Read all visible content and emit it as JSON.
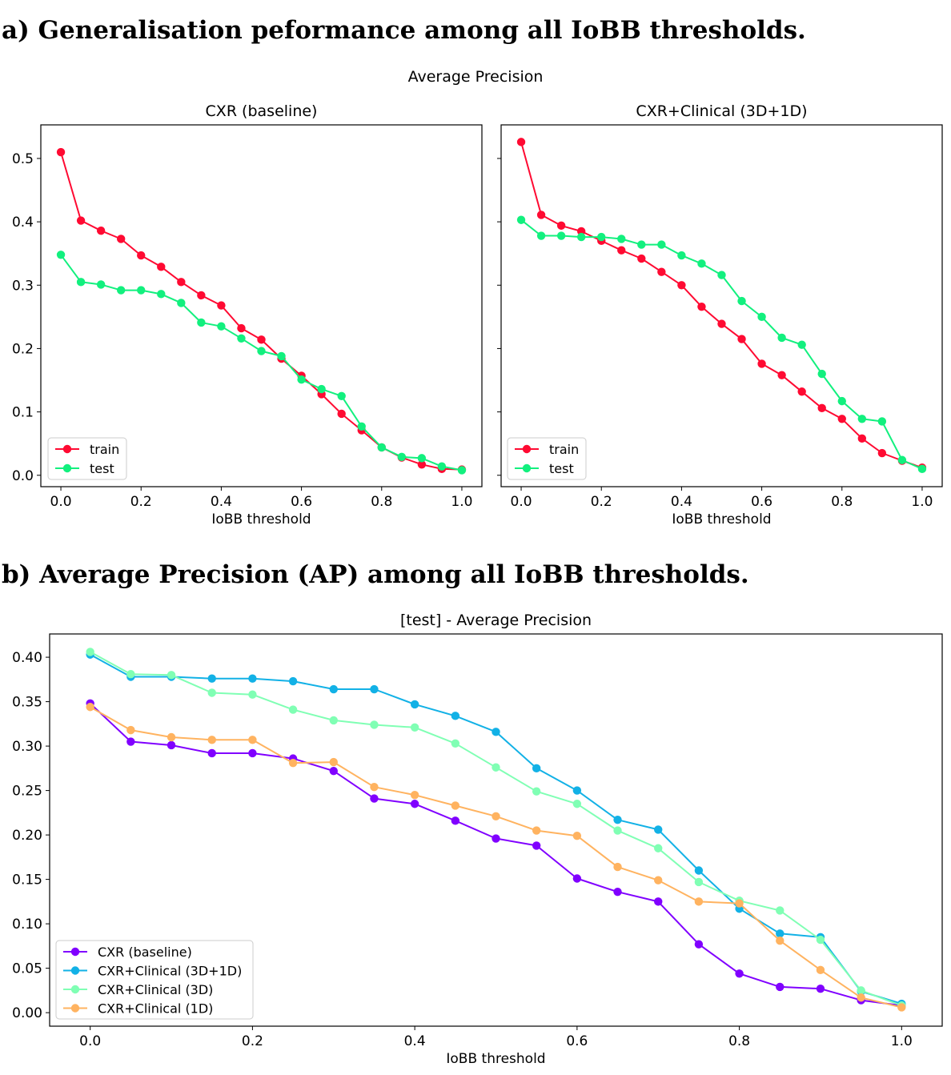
{
  "headings": {
    "a": "a) Generalisation peformance among all IoBB thresholds.",
    "b": "b) Average Precision (AP) among all IoBB thresholds."
  },
  "chart_data": [
    {
      "type": "line",
      "suptitle": "Average Precision",
      "title": "CXR (baseline)",
      "xlabel": "IoBB threshold",
      "ylabel": "",
      "xlim": [
        -0.05,
        1.05
      ],
      "ylim": [
        -0.018,
        0.553
      ],
      "xticks": [
        "0.0",
        "0.2",
        "0.4",
        "0.6",
        "0.8",
        "1.0"
      ],
      "yticks": [
        "0.0",
        "0.1",
        "0.2",
        "0.3",
        "0.4",
        "0.5"
      ],
      "legend": "lower-left",
      "grid": false,
      "x": [
        0.0,
        0.05,
        0.1,
        0.15,
        0.2,
        0.25,
        0.3,
        0.35,
        0.4,
        0.45,
        0.5,
        0.55,
        0.6,
        0.65,
        0.7,
        0.75,
        0.8,
        0.85,
        0.9,
        0.95,
        1.0
      ],
      "series": [
        {
          "name": "train",
          "color": "#ff0a32",
          "values": [
            0.51,
            0.402,
            0.386,
            0.373,
            0.347,
            0.329,
            0.305,
            0.284,
            0.268,
            0.232,
            0.214,
            0.184,
            0.157,
            0.128,
            0.097,
            0.071,
            0.044,
            0.028,
            0.017,
            0.01,
            0.009
          ]
        },
        {
          "name": "test",
          "color": "#12f07e",
          "values": [
            0.348,
            0.305,
            0.301,
            0.292,
            0.292,
            0.286,
            0.272,
            0.241,
            0.235,
            0.216,
            0.196,
            0.188,
            0.151,
            0.136,
            0.125,
            0.077,
            0.044,
            0.029,
            0.027,
            0.014,
            0.008
          ]
        }
      ]
    },
    {
      "type": "line",
      "title": "CXR+Clinical (3D+1D)",
      "xlabel": "IoBB threshold",
      "ylabel": "",
      "xlim": [
        -0.05,
        1.05
      ],
      "ylim": [
        -0.018,
        0.553
      ],
      "xticks": [
        "0.0",
        "0.2",
        "0.4",
        "0.6",
        "0.8",
        "1.0"
      ],
      "yticks": [],
      "legend": "lower-left",
      "grid": false,
      "x": [
        0.0,
        0.05,
        0.1,
        0.15,
        0.2,
        0.25,
        0.3,
        0.35,
        0.4,
        0.45,
        0.5,
        0.55,
        0.6,
        0.65,
        0.7,
        0.75,
        0.8,
        0.85,
        0.9,
        0.95,
        1.0
      ],
      "series": [
        {
          "name": "train",
          "color": "#ff0a32",
          "values": [
            0.526,
            0.411,
            0.394,
            0.385,
            0.37,
            0.355,
            0.342,
            0.321,
            0.3,
            0.266,
            0.239,
            0.215,
            0.176,
            0.158,
            0.132,
            0.106,
            0.089,
            0.058,
            0.035,
            0.023,
            0.012
          ]
        },
        {
          "name": "test",
          "color": "#12f07e",
          "values": [
            0.403,
            0.378,
            0.378,
            0.376,
            0.376,
            0.373,
            0.364,
            0.364,
            0.347,
            0.334,
            0.316,
            0.275,
            0.25,
            0.217,
            0.206,
            0.16,
            0.117,
            0.089,
            0.085,
            0.024,
            0.01
          ]
        }
      ]
    },
    {
      "type": "line",
      "title": "[test] - Average Precision",
      "xlabel": "IoBB threshold",
      "ylabel": "",
      "xlim": [
        -0.05,
        1.05
      ],
      "ylim": [
        -0.0152,
        0.4262
      ],
      "xticks": [
        "0.0",
        "0.2",
        "0.4",
        "0.6",
        "0.8",
        "1.0"
      ],
      "yticks": [
        "0.00",
        "0.05",
        "0.10",
        "0.15",
        "0.20",
        "0.25",
        "0.30",
        "0.35",
        "0.40"
      ],
      "legend": "lower-left",
      "grid": false,
      "x": [
        0.0,
        0.05,
        0.1,
        0.15,
        0.2,
        0.25,
        0.3,
        0.35,
        0.4,
        0.45,
        0.5,
        0.55,
        0.6,
        0.65,
        0.7,
        0.75,
        0.8,
        0.85,
        0.9,
        0.95,
        1.0
      ],
      "series": [
        {
          "name": "CXR (baseline)",
          "color": "#8000ff",
          "values": [
            0.348,
            0.305,
            0.301,
            0.292,
            0.292,
            0.286,
            0.272,
            0.241,
            0.235,
            0.216,
            0.196,
            0.188,
            0.151,
            0.136,
            0.125,
            0.077,
            0.044,
            0.029,
            0.027,
            0.014,
            0.008
          ]
        },
        {
          "name": "CXR+Clinical (3D+1D)",
          "color": "#12b1e6",
          "values": [
            0.403,
            0.378,
            0.378,
            0.376,
            0.376,
            0.373,
            0.364,
            0.364,
            0.347,
            0.334,
            0.316,
            0.275,
            0.25,
            0.217,
            0.206,
            0.16,
            0.117,
            0.089,
            0.085,
            0.024,
            0.01
          ]
        },
        {
          "name": "CXR+Clinical (3D)",
          "color": "#80ffb4",
          "values": [
            0.406,
            0.381,
            0.38,
            0.36,
            0.358,
            0.341,
            0.329,
            0.324,
            0.321,
            0.303,
            0.276,
            0.249,
            0.235,
            0.205,
            0.185,
            0.147,
            0.126,
            0.115,
            0.082,
            0.025,
            0.008
          ]
        },
        {
          "name": "CXR+Clinical (1D)",
          "color": "#ffb360",
          "values": [
            0.344,
            0.318,
            0.31,
            0.307,
            0.307,
            0.281,
            0.282,
            0.254,
            0.245,
            0.233,
            0.221,
            0.205,
            0.199,
            0.164,
            0.149,
            0.125,
            0.123,
            0.081,
            0.048,
            0.017,
            0.006
          ]
        }
      ]
    }
  ]
}
